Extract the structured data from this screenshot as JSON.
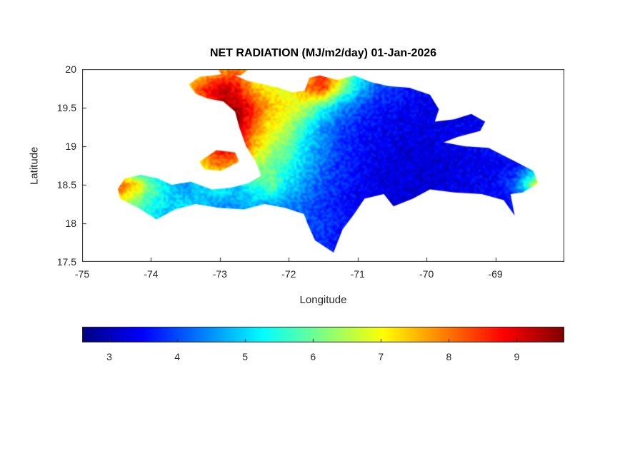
{
  "figure": {
    "background": "#ffffff",
    "axis_color": "#262626",
    "title_color": "#000000"
  },
  "chart_data": {
    "type": "heatmap",
    "title": "NET RADIATION (MJ/m2/day) 01-Jan-2026",
    "variable": "NET RADIATION",
    "units": "MJ/m2/day",
    "date": "01-Jan-2026",
    "xlabel": "Longitude",
    "ylabel": "Latitude",
    "xlim": [
      -75,
      -68
    ],
    "ylim": [
      17.5,
      20
    ],
    "xticks": [
      -75,
      -74,
      -73,
      -72,
      -71,
      -70,
      -69
    ],
    "xtick_labels": [
      "-75",
      "-74",
      "-73",
      "-72",
      "-71",
      "-70",
      "-69"
    ],
    "yticks": [
      20,
      19.5,
      19,
      18.5,
      18,
      17.5
    ],
    "ytick_labels": [
      "20",
      "19.5",
      "19",
      "18.5",
      "18",
      "17.5"
    ],
    "colormap": "jet",
    "clim": [
      2.6,
      9.7
    ],
    "colorbar": {
      "orientation": "horizontal",
      "ticks": [
        3,
        4,
        5,
        6,
        7,
        8,
        9
      ],
      "tick_labels": [
        "3",
        "4",
        "5",
        "6",
        "7",
        "8",
        "9"
      ]
    },
    "grid": {
      "lon_start": -75,
      "lon_step": 0.25,
      "lat_start": 20,
      "lat_step": -0.25,
      "ncols": 29,
      "nrows": 11,
      "values": [
        [
          4,
          4,
          4.5,
          5,
          5,
          5.5,
          6,
          7,
          7.5,
          8,
          7,
          6.5,
          6.5,
          7.5,
          8.5,
          7.5,
          5.5,
          4.5,
          4,
          4,
          3.8,
          3.6,
          3.6,
          3.8,
          4,
          4,
          4,
          4,
          4
        ],
        [
          4,
          4.2,
          4.5,
          5,
          5.5,
          6.5,
          7.5,
          8.5,
          9.2,
          8.8,
          7.5,
          7,
          6.8,
          8,
          8.5,
          6.5,
          5,
          4.2,
          3.8,
          3.6,
          3.5,
          3.4,
          3.4,
          3.5,
          3.6,
          3.8,
          4,
          4,
          4
        ],
        [
          4,
          4,
          4.3,
          4.6,
          5,
          6,
          7,
          8,
          9.3,
          9.5,
          8.5,
          7.5,
          7,
          6.5,
          5.5,
          4.5,
          4,
          3.6,
          3.5,
          3.4,
          3.3,
          3.3,
          3.4,
          3.5,
          3.6,
          3.7,
          3.8,
          3.9,
          4
        ],
        [
          4,
          4,
          4.2,
          4.5,
          4.8,
          5.5,
          6.5,
          8,
          9,
          9.5,
          8,
          7,
          6.5,
          5.5,
          4.5,
          4,
          3.7,
          3.5,
          3.4,
          3.3,
          3.3,
          3.3,
          3.4,
          3.4,
          3.5,
          3.6,
          3.7,
          3.8,
          4
        ],
        [
          4,
          4,
          4.2,
          4.4,
          4.6,
          5,
          6,
          7.5,
          9,
          9,
          7.5,
          6.5,
          6,
          5,
          4.4,
          3.9,
          3.6,
          3.4,
          3.3,
          3.2,
          3.2,
          3.3,
          3.3,
          3.4,
          3.5,
          3.6,
          3.7,
          3.8,
          4
        ],
        [
          4,
          4.2,
          4.4,
          4.6,
          4.8,
          5,
          5.5,
          7.5,
          8,
          7.5,
          6.5,
          6,
          5.5,
          4.8,
          4.2,
          3.8,
          3.5,
          3.3,
          3.2,
          3.2,
          3.2,
          3.2,
          3.3,
          3.3,
          3.4,
          3.5,
          4,
          5,
          6
        ],
        [
          5,
          6.5,
          8.5,
          7.5,
          6,
          5,
          4.5,
          5,
          5.5,
          5,
          5.5,
          6,
          5,
          4.5,
          4,
          3.7,
          3.5,
          3.3,
          3.2,
          3.2,
          3.2,
          3.3,
          3.3,
          3.4,
          3.5,
          4,
          6,
          8.5,
          8.5
        ],
        [
          5,
          6,
          7,
          6,
          5.5,
          5,
          5,
          4.8,
          4.5,
          4.6,
          4.8,
          4.6,
          4.5,
          4.2,
          3.8,
          3.6,
          3.4,
          3.3,
          3.2,
          3.2,
          3.2,
          3.3,
          3.3,
          3.4,
          3.4,
          3.5,
          3.8,
          4,
          4
        ],
        [
          4.5,
          5,
          5.5,
          5,
          5,
          4.8,
          4.6,
          4.5,
          4.4,
          4.3,
          4.2,
          4.2,
          4.1,
          4,
          3.9,
          3.7,
          3.5,
          3.4,
          3.3,
          3.3,
          3.3,
          3.3,
          3.3,
          3.4,
          3.4,
          3.5,
          3.6,
          3.8,
          3.9
        ],
        [
          4,
          4.2,
          4.5,
          4.5,
          4.4,
          4.3,
          4.2,
          4.1,
          4,
          4,
          3.9,
          3.9,
          3.8,
          3.8,
          3.7,
          3.6,
          3.5,
          3.4,
          3.4,
          3.3,
          3.3,
          3.3,
          3.3,
          3.4,
          3.4,
          3.4,
          3.5,
          3.6,
          3.7
        ],
        [
          4,
          4,
          4.2,
          4.3,
          4.3,
          4.2,
          4.1,
          4,
          4,
          3.9,
          3.9,
          3.8,
          3.8,
          3.7,
          3.7,
          3.6,
          3.5,
          3.4,
          3.4,
          3.3,
          3.3,
          3.3,
          3.3,
          3.3,
          3.4,
          3.4,
          3.4,
          3.5,
          3.6
        ]
      ]
    },
    "land_polygons": {
      "hispaniola": [
        [
          -73.45,
          19.8
        ],
        [
          -73.3,
          19.9
        ],
        [
          -73.1,
          19.92
        ],
        [
          -72.85,
          19.95
        ],
        [
          -72.6,
          19.85
        ],
        [
          -72.35,
          19.8
        ],
        [
          -72.15,
          19.76
        ],
        [
          -71.95,
          19.7
        ],
        [
          -71.77,
          19.72
        ],
        [
          -71.7,
          19.89
        ],
        [
          -71.55,
          19.92
        ],
        [
          -71.3,
          19.86
        ],
        [
          -71.05,
          19.92
        ],
        [
          -70.8,
          19.83
        ],
        [
          -70.55,
          19.78
        ],
        [
          -70.25,
          19.76
        ],
        [
          -69.95,
          19.67
        ],
        [
          -69.82,
          19.48
        ],
        [
          -69.88,
          19.32
        ],
        [
          -69.6,
          19.35
        ],
        [
          -69.35,
          19.42
        ],
        [
          -69.15,
          19.32
        ],
        [
          -69.22,
          19.2
        ],
        [
          -69.55,
          19.12
        ],
        [
          -69.75,
          19.05
        ],
        [
          -69.45,
          19.0
        ],
        [
          -69.1,
          18.98
        ],
        [
          -68.75,
          18.82
        ],
        [
          -68.45,
          18.68
        ],
        [
          -68.38,
          18.52
        ],
        [
          -68.6,
          18.4
        ],
        [
          -68.78,
          18.38
        ],
        [
          -68.72,
          18.1
        ],
        [
          -68.88,
          18.3
        ],
        [
          -69.2,
          18.38
        ],
        [
          -69.6,
          18.4
        ],
        [
          -69.95,
          18.44
        ],
        [
          -70.2,
          18.32
        ],
        [
          -70.48,
          18.22
        ],
        [
          -70.62,
          18.38
        ],
        [
          -70.9,
          18.32
        ],
        [
          -71.05,
          18.12
        ],
        [
          -71.22,
          17.92
        ],
        [
          -71.35,
          17.62
        ],
        [
          -71.62,
          17.78
        ],
        [
          -71.73,
          18.0
        ],
        [
          -71.78,
          18.12
        ],
        [
          -72.05,
          18.2
        ],
        [
          -72.35,
          18.25
        ],
        [
          -72.65,
          18.18
        ],
        [
          -73.0,
          18.2
        ],
        [
          -73.35,
          18.25
        ],
        [
          -73.65,
          18.18
        ],
        [
          -73.92,
          18.05
        ],
        [
          -74.18,
          18.2
        ],
        [
          -74.45,
          18.32
        ],
        [
          -74.48,
          18.45
        ],
        [
          -74.38,
          18.58
        ],
        [
          -74.15,
          18.63
        ],
        [
          -73.9,
          18.58
        ],
        [
          -73.7,
          18.5
        ],
        [
          -73.42,
          18.54
        ],
        [
          -73.12,
          18.44
        ],
        [
          -72.85,
          18.46
        ],
        [
          -72.58,
          18.52
        ],
        [
          -72.4,
          18.62
        ],
        [
          -72.48,
          18.8
        ],
        [
          -72.62,
          19.0
        ],
        [
          -72.72,
          19.25
        ],
        [
          -72.78,
          19.45
        ],
        [
          -72.95,
          19.58
        ],
        [
          -73.18,
          19.62
        ],
        [
          -73.35,
          19.68
        ]
      ],
      "gonave": [
        [
          -73.3,
          18.8
        ],
        [
          -73.05,
          18.95
        ],
        [
          -72.78,
          18.92
        ],
        [
          -72.72,
          18.8
        ],
        [
          -72.98,
          18.68
        ],
        [
          -73.22,
          18.7
        ]
      ],
      "tortue": [
        [
          -73.05,
          20.02
        ],
        [
          -72.8,
          20.06
        ],
        [
          -72.58,
          20.0
        ],
        [
          -72.7,
          19.92
        ],
        [
          -72.98,
          19.94
        ]
      ]
    }
  }
}
